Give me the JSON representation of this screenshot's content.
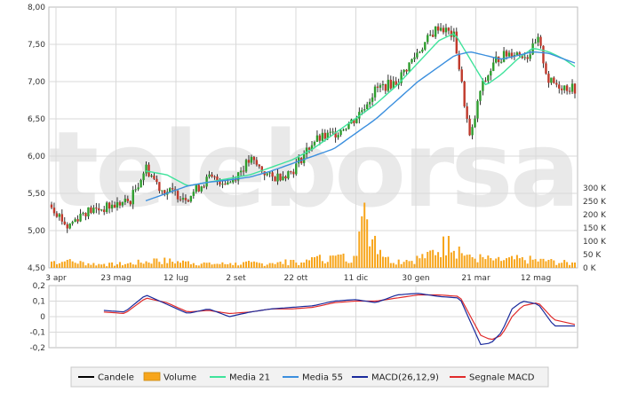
{
  "chart_data": {
    "type": "line",
    "watermark": "teleborsa",
    "x_ticks": [
      "3 apr",
      "23 mag",
      "12 lug",
      "2 set",
      "22 ott",
      "11 dic",
      "30 gen",
      "21 mar",
      "12 mag"
    ],
    "price_axis": {
      "ylim": [
        4.5,
        8.0
      ],
      "ticks": [
        "4,50",
        "5,00",
        "5,50",
        "6,00",
        "6,50",
        "7,00",
        "7,50",
        "8,00"
      ]
    },
    "volume_axis": {
      "ylim": [
        0,
        300000
      ],
      "ticks": [
        "0 K",
        "50 K",
        "100 K",
        "150 K",
        "200 K",
        "250 K",
        "300 K"
      ]
    },
    "macd_axis": {
      "ylim": [
        -0.2,
        0.2
      ],
      "ticks": [
        "0,2",
        "0,1",
        "0",
        "-0,1",
        "-0,2"
      ]
    },
    "legend": [
      {
        "label": "Candele",
        "color": "#000000",
        "kind": "line"
      },
      {
        "label": "Volume",
        "color": "#f7a51b",
        "kind": "box"
      },
      {
        "label": "Media 21",
        "color": "#3fe39b",
        "kind": "line"
      },
      {
        "label": "Media 55",
        "color": "#3b8fde",
        "kind": "line"
      },
      {
        "label": "MACD(26,12,9)",
        "color": "#1a2a9c",
        "kind": "line"
      },
      {
        "label": "Segnale MACD",
        "color": "#e02a2a",
        "kind": "line"
      }
    ],
    "colors": {
      "up": "#2e9e2e",
      "down": "#c0392b",
      "wick": "#000000",
      "volume": "#f7a51b",
      "grid": "#d9d9d9"
    },
    "series": [
      {
        "name": "Candele",
        "x": [
          0,
          0.03,
          0.06,
          0.1,
          0.15,
          0.18,
          0.21,
          0.26,
          0.3,
          0.34,
          0.38,
          0.42,
          0.46,
          0.5,
          0.54,
          0.58,
          0.62,
          0.66,
          0.7,
          0.74,
          0.77,
          0.8,
          0.82,
          0.85,
          0.88,
          0.91,
          0.93,
          0.95,
          0.97,
          1.0
        ],
        "values": [
          5.35,
          5.05,
          5.25,
          5.3,
          5.4,
          5.85,
          5.55,
          5.45,
          5.7,
          5.65,
          5.95,
          5.7,
          5.8,
          6.2,
          6.3,
          6.5,
          6.9,
          7.0,
          7.4,
          7.75,
          7.6,
          6.2,
          6.9,
          7.3,
          7.4,
          7.35,
          7.55,
          7.0,
          6.95,
          6.9
        ]
      },
      {
        "name": "Media 21",
        "x": [
          0.18,
          0.22,
          0.26,
          0.3,
          0.34,
          0.38,
          0.42,
          0.46,
          0.5,
          0.54,
          0.58,
          0.62,
          0.66,
          0.7,
          0.74,
          0.77,
          0.8,
          0.83,
          0.86,
          0.89,
          0.92,
          0.95,
          0.98,
          1.0
        ],
        "values": [
          5.8,
          5.75,
          5.6,
          5.65,
          5.7,
          5.75,
          5.85,
          5.95,
          6.1,
          6.3,
          6.5,
          6.7,
          6.95,
          7.25,
          7.55,
          7.65,
          7.3,
          6.95,
          7.1,
          7.3,
          7.45,
          7.4,
          7.3,
          7.2
        ]
      },
      {
        "name": "Media 55",
        "x": [
          0.18,
          0.22,
          0.26,
          0.3,
          0.34,
          0.38,
          0.42,
          0.46,
          0.5,
          0.54,
          0.58,
          0.62,
          0.66,
          0.7,
          0.74,
          0.77,
          0.8,
          0.83,
          0.86,
          0.89,
          0.92,
          0.95,
          0.98,
          1.0
        ],
        "values": [
          5.4,
          5.5,
          5.6,
          5.65,
          5.68,
          5.72,
          5.8,
          5.9,
          6.0,
          6.1,
          6.3,
          6.5,
          6.75,
          7.0,
          7.2,
          7.35,
          7.4,
          7.35,
          7.3,
          7.35,
          7.4,
          7.38,
          7.3,
          7.25
        ]
      },
      {
        "name": "Volume",
        "x": [
          0.03,
          0.1,
          0.15,
          0.2,
          0.26,
          0.3,
          0.34,
          0.38,
          0.42,
          0.46,
          0.48,
          0.5,
          0.55,
          0.58,
          0.6,
          0.64,
          0.68,
          0.72,
          0.76,
          0.78,
          0.8,
          0.85,
          0.9,
          0.95,
          1.0
        ],
        "values": [
          30000,
          15000,
          20000,
          35000,
          25000,
          20000,
          18000,
          22000,
          18000,
          30000,
          20000,
          40000,
          50000,
          45000,
          245000,
          40000,
          30000,
          60000,
          120000,
          80000,
          50000,
          35000,
          40000,
          30000,
          20000
        ]
      },
      {
        "name": "MACD(26,12,9)",
        "x": [
          0.1,
          0.14,
          0.18,
          0.22,
          0.26,
          0.3,
          0.34,
          0.38,
          0.42,
          0.46,
          0.5,
          0.54,
          0.58,
          0.62,
          0.66,
          0.7,
          0.74,
          0.78,
          0.82,
          0.84,
          0.86,
          0.88,
          0.9,
          0.93,
          0.96,
          1.0
        ],
        "values": [
          0.04,
          0.03,
          0.14,
          0.08,
          0.02,
          0.05,
          0.0,
          0.03,
          0.05,
          0.06,
          0.07,
          0.1,
          0.11,
          0.09,
          0.14,
          0.15,
          0.13,
          0.12,
          -0.18,
          -0.17,
          -0.1,
          0.05,
          0.1,
          0.08,
          -0.06,
          -0.06
        ]
      },
      {
        "name": "Segnale MACD",
        "x": [
          0.1,
          0.14,
          0.18,
          0.22,
          0.26,
          0.3,
          0.34,
          0.38,
          0.42,
          0.46,
          0.5,
          0.54,
          0.58,
          0.62,
          0.66,
          0.7,
          0.74,
          0.78,
          0.82,
          0.84,
          0.86,
          0.88,
          0.9,
          0.93,
          0.96,
          1.0
        ],
        "values": [
          0.03,
          0.02,
          0.12,
          0.09,
          0.03,
          0.04,
          0.02,
          0.03,
          0.05,
          0.05,
          0.06,
          0.09,
          0.1,
          0.1,
          0.12,
          0.14,
          0.14,
          0.13,
          -0.12,
          -0.15,
          -0.12,
          0.0,
          0.07,
          0.09,
          -0.02,
          -0.05
        ]
      }
    ]
  }
}
